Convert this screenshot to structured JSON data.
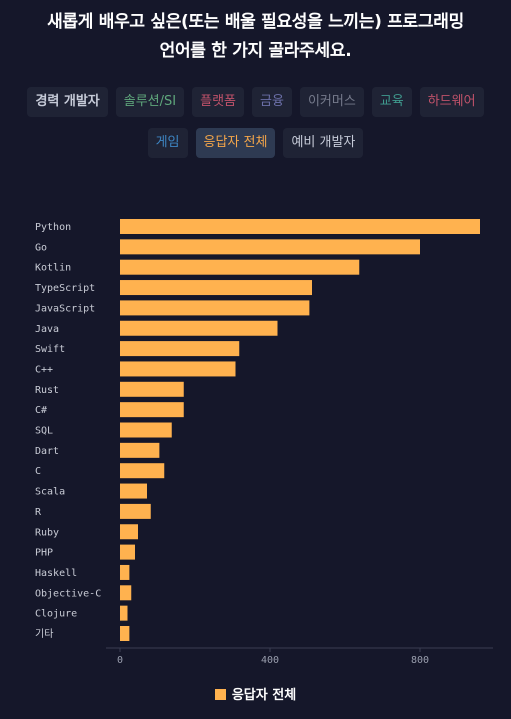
{
  "title": {
    "line1": "새롭게 배우고 싶은(또는 배울 필요성을 느끼는) 프로그래밍",
    "line2": "언어를 한 가지 골라주세요."
  },
  "filters": [
    {
      "label": "경력 개발자",
      "color": "#c6cbd8",
      "bold": true,
      "active": false
    },
    {
      "label": "솔루션/SI",
      "color": "#5fa77c",
      "active": false
    },
    {
      "label": "플랫폼",
      "color": "#c0526a",
      "active": false
    },
    {
      "label": "금융",
      "color": "#6b6fa8",
      "active": false
    },
    {
      "label": "이커머스",
      "color": "#767b8c",
      "active": false
    },
    {
      "label": "교육",
      "color": "#3f9a8e",
      "active": false
    },
    {
      "label": "하드웨어",
      "color": "#c0526a",
      "active": false
    },
    {
      "label": "게임",
      "color": "#3e86c4",
      "active": false
    },
    {
      "label": "응답자 전체",
      "color": "#f4a64a",
      "active": true
    },
    {
      "label": "예비 개발자",
      "color": "#c6cbd8",
      "active": false
    }
  ],
  "chart_data": {
    "type": "bar",
    "orientation": "horizontal",
    "categories": [
      "Python",
      "Go",
      "Kotlin",
      "TypeScript",
      "JavaScript",
      "Java",
      "Swift",
      "C++",
      "Rust",
      "C#",
      "SQL",
      "Dart",
      "C",
      "Scala",
      "R",
      "Ruby",
      "PHP",
      "Haskell",
      "Objective-C",
      "Clojure",
      "기타"
    ],
    "series": [
      {
        "name": "응답자 전체",
        "color": "#ffb24f",
        "values": [
          960,
          800,
          638,
          512,
          505,
          420,
          318,
          308,
          170,
          170,
          138,
          105,
          118,
          72,
          82,
          48,
          40,
          25,
          30,
          20,
          25
        ]
      }
    ],
    "xlim": [
      0,
      1000
    ],
    "xticks": [
      0,
      400,
      800
    ],
    "legend": "bottom"
  }
}
